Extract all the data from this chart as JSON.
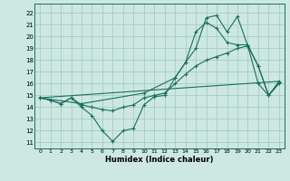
{
  "xlabel": "Humidex (Indice chaleur)",
  "bg_color": "#cce8e0",
  "grid_color": "#a8ccc4",
  "line_color": "#1a6e60",
  "xlim": [
    -0.5,
    23.5
  ],
  "ylim": [
    10.5,
    22.8
  ],
  "xticks": [
    0,
    1,
    2,
    3,
    4,
    5,
    6,
    7,
    8,
    9,
    10,
    11,
    12,
    13,
    14,
    15,
    16,
    17,
    18,
    19,
    20,
    21,
    22,
    23
  ],
  "yticks": [
    11,
    12,
    13,
    14,
    15,
    16,
    17,
    18,
    19,
    20,
    21,
    22
  ],
  "line1_x": [
    0,
    1,
    2,
    3,
    4,
    5,
    6,
    7,
    8,
    9,
    10,
    11,
    12,
    13,
    14,
    15,
    16,
    17,
    18,
    19,
    20,
    21,
    22,
    23
  ],
  "line1_y": [
    14.8,
    14.6,
    14.3,
    14.8,
    14.0,
    13.3,
    12.0,
    11.1,
    12.0,
    12.2,
    14.2,
    14.9,
    15.0,
    16.5,
    17.8,
    19.0,
    21.6,
    21.8,
    20.4,
    21.7,
    19.2,
    17.5,
    15.0,
    16.1
  ],
  "line2_x": [
    0,
    1,
    2,
    3,
    4,
    5,
    6,
    7,
    8,
    9,
    10,
    11,
    12,
    13,
    14,
    15,
    16,
    17,
    18,
    19,
    20,
    21,
    22,
    23
  ],
  "line2_y": [
    14.8,
    14.6,
    14.3,
    14.8,
    14.2,
    14.0,
    13.8,
    13.7,
    14.0,
    14.2,
    14.8,
    15.0,
    15.2,
    16.0,
    16.8,
    17.5,
    18.0,
    18.3,
    18.6,
    19.0,
    19.2,
    16.0,
    15.0,
    16.0
  ],
  "line3_x": [
    0,
    4,
    10,
    13,
    14,
    15,
    16,
    17,
    18,
    19,
    20,
    21,
    22,
    23
  ],
  "line3_y": [
    14.8,
    14.3,
    15.2,
    16.5,
    17.8,
    20.4,
    21.2,
    20.7,
    19.5,
    19.3,
    19.3,
    17.5,
    15.0,
    16.2
  ],
  "line4_x": [
    0,
    23
  ],
  "line4_y": [
    14.8,
    16.2
  ]
}
